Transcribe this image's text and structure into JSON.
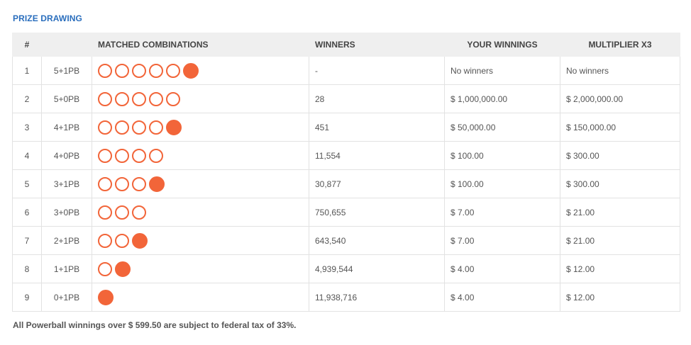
{
  "title": "PRIZE DRAWING",
  "headers": {
    "num": "#",
    "combo": "MATCHED COMBINATIONS",
    "winners": "WINNERS",
    "your_winnings": "YOUR WINNINGS",
    "multiplier": "MULTIPLIER X3"
  },
  "rows": [
    {
      "num": "1",
      "code": "5+1PB",
      "white_balls": 5,
      "powerball": true,
      "winners": "-",
      "your_winnings": "No winners",
      "multiplier": "No winners"
    },
    {
      "num": "2",
      "code": "5+0PB",
      "white_balls": 5,
      "powerball": false,
      "winners": "28",
      "your_winnings": "$ 1,000,000.00",
      "multiplier": "$ 2,000,000.00"
    },
    {
      "num": "3",
      "code": "4+1PB",
      "white_balls": 4,
      "powerball": true,
      "winners": "451",
      "your_winnings": "$ 50,000.00",
      "multiplier": "$ 150,000.00"
    },
    {
      "num": "4",
      "code": "4+0PB",
      "white_balls": 4,
      "powerball": false,
      "winners": "11,554",
      "your_winnings": "$ 100.00",
      "multiplier": "$ 300.00"
    },
    {
      "num": "5",
      "code": "3+1PB",
      "white_balls": 3,
      "powerball": true,
      "winners": "30,877",
      "your_winnings": "$ 100.00",
      "multiplier": "$ 300.00"
    },
    {
      "num": "6",
      "code": "3+0PB",
      "white_balls": 3,
      "powerball": false,
      "winners": "750,655",
      "your_winnings": "$ 7.00",
      "multiplier": "$ 21.00"
    },
    {
      "num": "7",
      "code": "2+1PB",
      "white_balls": 2,
      "powerball": true,
      "winners": "643,540",
      "your_winnings": "$ 7.00",
      "multiplier": "$ 21.00"
    },
    {
      "num": "8",
      "code": "1+1PB",
      "white_balls": 1,
      "powerball": true,
      "winners": "4,939,544",
      "your_winnings": "$ 4.00",
      "multiplier": "$ 12.00"
    },
    {
      "num": "9",
      "code": "0+1PB",
      "white_balls": 0,
      "powerball": true,
      "winners": "11,938,716",
      "your_winnings": "$ 4.00",
      "multiplier": "$ 12.00"
    }
  ],
  "footer": "All Powerball winnings over $ 599.50 are subject to federal tax of 33%.",
  "colors": {
    "ball": "#f26539",
    "title": "#2a6ebd",
    "header_bg": "#efefef"
  }
}
